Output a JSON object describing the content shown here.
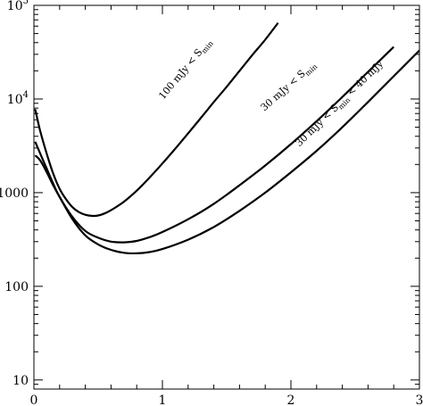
{
  "chart_data": {
    "type": "line",
    "x_scale": "linear",
    "y_scale": "log",
    "xlim": [
      0,
      3
    ],
    "ylim": [
      8,
      100000
    ],
    "x_major_ticks": [
      0,
      1,
      2,
      3
    ],
    "x_tick_labels": [
      "0",
      "1",
      "2",
      "3"
    ],
    "x_minor_ticks": [
      0.2,
      0.4,
      0.6,
      0.8,
      1.2,
      1.4,
      1.6,
      1.8,
      2.2,
      2.4,
      2.6,
      2.8
    ],
    "y_major_ticks": [
      10,
      100,
      1000,
      10000,
      100000
    ],
    "y_tick_labels": [
      {
        "base": "10",
        "sup": ""
      },
      {
        "base": "100",
        "sup": ""
      },
      {
        "base": "1000",
        "sup": ""
      },
      {
        "base": "10",
        "sup": "4"
      },
      {
        "base": "10",
        "sup": "5"
      }
    ],
    "title": "",
    "xlabel": "",
    "ylabel": "",
    "grid": false,
    "series": [
      {
        "label_parts": {
          "main": "100 mJy < S",
          "sub": "min"
        },
        "label_anchor": {
          "x": 1.25,
          "y": 20000
        },
        "x": [
          0.01,
          0.05,
          0.1,
          0.15,
          0.2,
          0.25,
          0.3,
          0.35,
          0.4,
          0.45,
          0.5,
          0.55,
          0.6,
          0.7,
          0.8,
          0.9,
          1.0,
          1.1,
          1.2,
          1.3,
          1.4,
          1.5,
          1.6,
          1.7,
          1.8,
          1.9
        ],
        "y": [
          7800,
          4500,
          2600,
          1600,
          1100,
          850,
          700,
          620,
          580,
          565,
          570,
          600,
          650,
          800,
          1050,
          1450,
          2050,
          2950,
          4300,
          6300,
          9300,
          13500,
          20000,
          29500,
          43000,
          65000
        ]
      },
      {
        "label_parts": {
          "main": "30 mJy < S",
          "sub": "min"
        },
        "label_anchor": {
          "x": 2.05,
          "y": 13000
        },
        "x": [
          0.01,
          0.05,
          0.1,
          0.15,
          0.2,
          0.3,
          0.4,
          0.5,
          0.6,
          0.7,
          0.8,
          0.9,
          1.0,
          1.2,
          1.4,
          1.6,
          1.8,
          2.0,
          2.2,
          2.4,
          2.6,
          2.8
        ],
        "y": [
          3500,
          2600,
          1800,
          1250,
          900,
          550,
          390,
          330,
          300,
          295,
          305,
          335,
          380,
          520,
          760,
          1200,
          1950,
          3300,
          5800,
          10500,
          19500,
          36000
        ]
      },
      {
        "label_parts": {
          "main": "30 mJy < S",
          "sub": "min",
          "rest": " < 40 mJy"
        },
        "label_anchor": {
          "x": 2.45,
          "y": 8500
        },
        "x": [
          0.01,
          0.05,
          0.1,
          0.15,
          0.2,
          0.3,
          0.4,
          0.5,
          0.6,
          0.7,
          0.8,
          0.9,
          1.0,
          1.2,
          1.4,
          1.6,
          1.8,
          2.0,
          2.2,
          2.4,
          2.6,
          2.8,
          3.0
        ],
        "y": [
          2500,
          2200,
          1650,
          1200,
          900,
          520,
          350,
          280,
          245,
          228,
          225,
          232,
          250,
          315,
          430,
          640,
          1000,
          1650,
          2800,
          5000,
          9300,
          17500,
          33000
        ]
      }
    ]
  }
}
